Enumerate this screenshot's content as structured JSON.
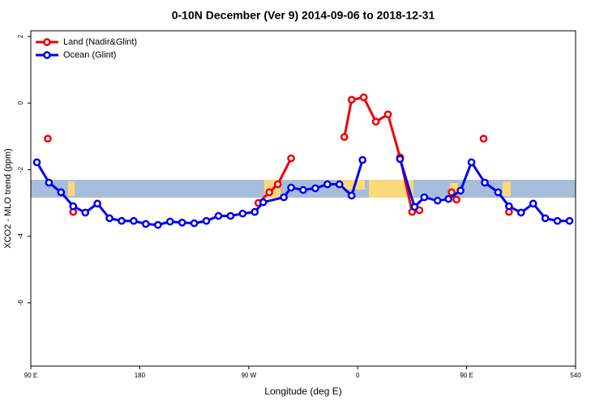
{
  "chart_data": {
    "type": "line",
    "title": "0-10N December (Ver 9)   2014-09-06 to 2018-12-31",
    "xlabel": "Longitude (deg E)",
    "ylabel": "XCO2 - MLO trend (ppm)",
    "xlim": [
      90,
      540
    ],
    "ylim": [
      -7.9,
      2.17
    ],
    "xticks": [
      {
        "value": 90,
        "label": "90 E"
      },
      180,
      {
        "value": 270,
        "label": "90 W"
      },
      {
        "value": 360,
        "label": "0"
      },
      {
        "value": 450,
        "label": "90 E"
      },
      540
    ],
    "yticks": [
      2,
      0,
      -2,
      -4,
      -6
    ],
    "legend": "top-left",
    "series": [
      {
        "name": "Land (Nadir&Glint)",
        "color": "#ee0000",
        "x": [
          104,
          null,
          125,
          null,
          278,
          287,
          294,
          305,
          null,
          349,
          355,
          365,
          375,
          385,
          395,
          405,
          null,
          411,
          null,
          437.6,
          441.6,
          null,
          464,
          null,
          485
        ],
        "values": [
          -1.07,
          null,
          -3.27,
          null,
          -3.0,
          -2.68,
          -2.44,
          -1.66,
          null,
          -1.02,
          0.1,
          0.17,
          -0.56,
          -0.34,
          -1.63,
          -3.27,
          null,
          -3.22,
          null,
          -2.68,
          -2.9,
          null,
          -1.07,
          null,
          -3.27
        ]
      },
      {
        "name": "Ocean (Glint)",
        "color": "#0000ee",
        "x": [
          95,
          105,
          115,
          125,
          135,
          145,
          155,
          165,
          175,
          185,
          195,
          205,
          215,
          225,
          235,
          245,
          255,
          265,
          275,
          282,
          299,
          305,
          315,
          325,
          335,
          345,
          355,
          364,
          null,
          395,
          407,
          415,
          426,
          435,
          445,
          454,
          465,
          476,
          485,
          495,
          505,
          515,
          525,
          535
        ],
        "values": [
          -1.78,
          -2.39,
          -2.68,
          -3.1,
          -3.29,
          -3.02,
          -3.46,
          -3.54,
          -3.54,
          -3.63,
          -3.66,
          -3.56,
          -3.59,
          -3.61,
          -3.54,
          -3.39,
          -3.39,
          -3.32,
          -3.27,
          -2.98,
          -2.83,
          -2.54,
          -2.61,
          -2.56,
          -2.44,
          -2.44,
          -2.78,
          -1.71,
          null,
          -1.68,
          -3.12,
          -2.83,
          -2.93,
          -2.88,
          -2.63,
          -1.78,
          -2.39,
          -2.68,
          -3.1,
          -3.29,
          -3.02,
          -3.46,
          -3.54,
          -3.54
        ]
      }
    ]
  }
}
